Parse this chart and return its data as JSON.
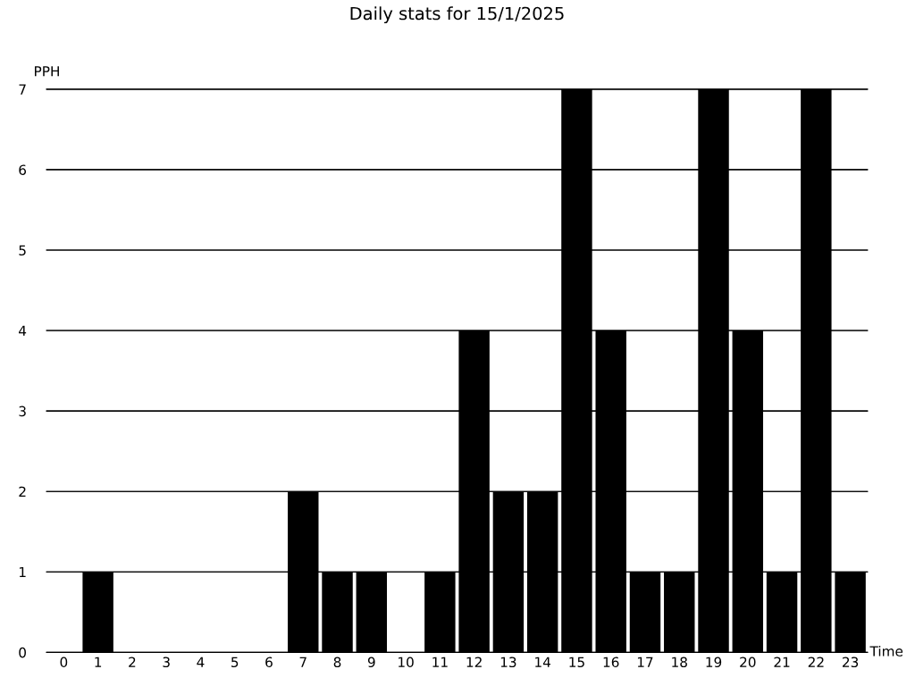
{
  "chart_data": {
    "type": "bar",
    "title": "Daily stats for 15/1/2025",
    "xlabel": "Time",
    "ylabel": "PPH",
    "categories": [
      "0",
      "1",
      "2",
      "3",
      "4",
      "5",
      "6",
      "7",
      "8",
      "9",
      "10",
      "11",
      "12",
      "13",
      "14",
      "15",
      "16",
      "17",
      "18",
      "19",
      "20",
      "21",
      "22",
      "23"
    ],
    "values": [
      0,
      1,
      0,
      0,
      0,
      0,
      0,
      2,
      1,
      1,
      0,
      1,
      4,
      2,
      2,
      7,
      4,
      1,
      1,
      7,
      4,
      1,
      7,
      1
    ],
    "color": "#000000",
    "ylim": [
      0,
      7
    ],
    "yticks": [
      0,
      1,
      2,
      3,
      4,
      5,
      6,
      7
    ],
    "grid": "y",
    "legend": false
  }
}
